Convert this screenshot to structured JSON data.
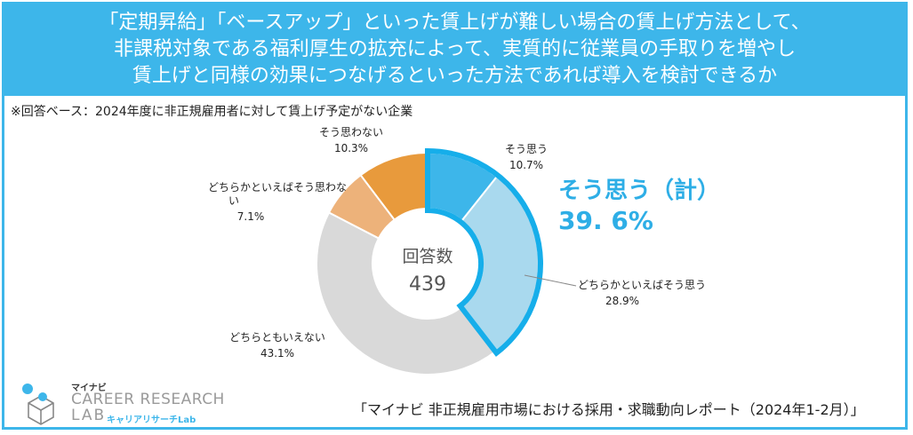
{
  "header": {
    "line1": "「定期昇給」「ベースアップ」といった賃上げが難しい場合の賃上げ方法として、",
    "line2": "非課税対象である福利厚生の拡充によって、実質的に従業員の手取りを増やし",
    "line3": "賃上げと同様の効果につなげるといった方法であれば導入を検討できるか"
  },
  "note": "※回答ベース：2024年度に非正規雇用者に対して賃上げ予定がない企業",
  "chart_data": {
    "type": "pie",
    "variant": "donut",
    "center_label": "回答数",
    "center_value": "439",
    "slices": [
      {
        "label": "そう思う",
        "value": 10.7,
        "display": "10.7%",
        "color": "#3db6ea"
      },
      {
        "label": "どちらかといえばそう思う",
        "value": 28.9,
        "display": "28.9%",
        "color": "#a9d9ee"
      },
      {
        "label": "どちらともいえない",
        "value": 43.1,
        "display": "43.1%",
        "color": "#d9d9d9"
      },
      {
        "label": "どちらかといえばそう思わない",
        "value": 7.1,
        "display": "7.1%",
        "color": "#edb27a"
      },
      {
        "label": "そう思わない",
        "value": 10.3,
        "display": "10.3%",
        "color": "#e89a3c"
      }
    ],
    "summary": {
      "label": "そう思う（計）",
      "value": "39. 6%",
      "color": "#2eaee6"
    }
  },
  "source": "「マイナビ 非正規雇用市場における採用・求職動向レポート（2024年1-2月）」",
  "logo": {
    "jp": "マイナビ",
    "en_line1": "CAREER RESEARCH",
    "en_line2": "LAB",
    "sub": "キャリアリサーチLab",
    "accent_color": "#3db6ea"
  }
}
